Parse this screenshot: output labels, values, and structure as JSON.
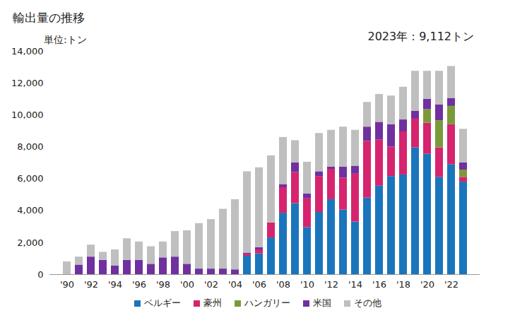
{
  "chart_data": {
    "type": "bar",
    "title": "輸出量の推移",
    "y_label": "単位:トン",
    "annotation": "2023年：9,112トン",
    "stacked": true,
    "grid": false,
    "legend": "bottom",
    "categories": [
      "'90",
      null,
      "'92",
      null,
      "'94",
      null,
      "'96",
      null,
      "'98",
      null,
      "'00",
      null,
      "'02",
      null,
      "'04",
      null,
      "'06",
      null,
      "'08",
      null,
      "'10",
      null,
      "'12",
      null,
      "'14",
      null,
      "'16",
      null,
      "'18",
      null,
      "'20",
      null,
      "'22",
      null
    ],
    "ylim": [
      0,
      14000
    ],
    "yticks": [
      0,
      {
        "value": 2000,
        "label": "2,000"
      },
      {
        "value": 4000,
        "label": "4,000"
      },
      {
        "value": 6000,
        "label": "6,000"
      },
      {
        "value": 8000,
        "label": "8,000"
      },
      {
        "value": 10000,
        "label": "10,000"
      },
      {
        "value": 12000,
        "label": "12,000"
      },
      {
        "value": 14000,
        "label": "14,000"
      }
    ],
    "series": [
      {
        "name": "ベルギー",
        "color": "#1a75bc",
        "values": [
          0,
          0,
          0,
          0,
          0,
          0,
          0,
          0,
          0,
          0,
          0,
          0,
          0,
          0,
          0,
          1150,
          1300,
          2300,
          3850,
          4450,
          2950,
          3900,
          4700,
          4050,
          3300,
          4800,
          5550,
          6150,
          6250,
          7950,
          7550,
          6100,
          6900,
          5800
        ]
      },
      {
        "name": "豪州",
        "color": "#d6246e",
        "values": [
          0,
          0,
          0,
          0,
          0,
          0,
          0,
          0,
          0,
          0,
          0,
          0,
          0,
          0,
          0,
          100,
          250,
          950,
          1600,
          1950,
          1800,
          2250,
          1900,
          2000,
          3000,
          3550,
          2900,
          1850,
          2700,
          1800,
          1950,
          1850,
          2500,
          300
        ]
      },
      {
        "name": "ハンガリー",
        "color": "#7a9a3a",
        "values": [
          0,
          0,
          0,
          0,
          0,
          0,
          0,
          0,
          0,
          0,
          0,
          0,
          0,
          0,
          0,
          0,
          0,
          0,
          0,
          0,
          0,
          0,
          0,
          0,
          0,
          0,
          0,
          0,
          0,
          0,
          850,
          1700,
          1150,
          450
        ]
      },
      {
        "name": "米国",
        "color": "#7030a0",
        "values": [
          0,
          600,
          1100,
          900,
          550,
          900,
          900,
          650,
          1050,
          1100,
          650,
          350,
          350,
          350,
          300,
          100,
          150,
          0,
          200,
          600,
          300,
          300,
          150,
          700,
          500,
          900,
          1100,
          1400,
          750,
          500,
          650,
          1000,
          500,
          450
        ]
      },
      {
        "name": "その他",
        "color": "#bfbfbf",
        "values": [
          800,
          500,
          750,
          500,
          1000,
          1350,
          1150,
          1100,
          1000,
          1600,
          2100,
          2850,
          3100,
          3750,
          4400,
          5100,
          5000,
          4200,
          2950,
          1400,
          2000,
          2400,
          2300,
          2500,
          2250,
          1550,
          1750,
          1800,
          2050,
          2500,
          1750,
          2100,
          2000,
          2112
        ]
      }
    ]
  }
}
